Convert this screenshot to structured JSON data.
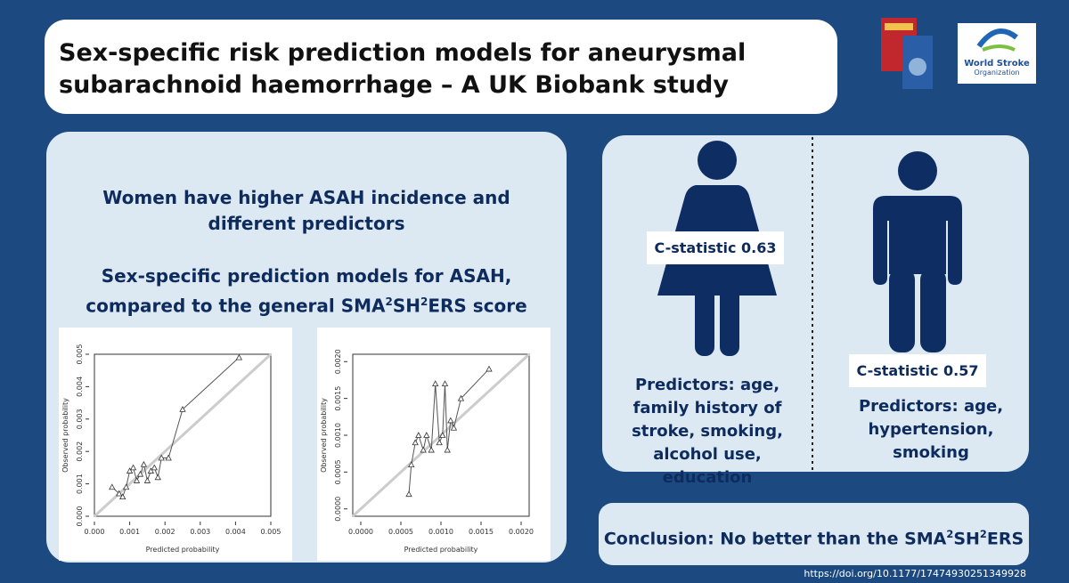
{
  "header": {
    "title": "Sex-specific risk prediction models for aneurysmal subarachnoid haemorrhage – A UK Biobank study",
    "logo_line1": "World Stroke",
    "logo_line2": "Organization"
  },
  "left_panel": {
    "heading": "Women have higher ASAH incidence and different predictors",
    "subheading": [
      "Sex-specific prediction models for ASAH, compared to the general SMA",
      "2",
      "SH",
      "2",
      "ERS score"
    ],
    "plots": [
      {
        "xlabel": "Predicted probability",
        "ylabel": "Observed probability",
        "xlim": [
          0,
          0.005
        ],
        "ylim": [
          0,
          0.005
        ],
        "xticks": [
          {
            "value": 0,
            "label": "0.000"
          },
          {
            "value": 0.001,
            "label": "0.001"
          },
          {
            "value": 0.002,
            "label": "0.002"
          },
          {
            "value": 0.003,
            "label": "0.003"
          },
          {
            "value": 0.004,
            "label": "0.004"
          },
          {
            "value": 0.005,
            "label": "0.005"
          }
        ],
        "yticks": [
          {
            "value": 0,
            "label": "0.000"
          },
          {
            "value": 0.001,
            "label": "0.001"
          },
          {
            "value": 0.002,
            "label": "0.002"
          },
          {
            "value": 0.003,
            "label": "0.003"
          },
          {
            "value": 0.004,
            "label": "0.004"
          },
          {
            "value": 0.005,
            "label": "0.005"
          }
        ],
        "x": [
          0.0005,
          0.0007,
          0.0008,
          0.0009,
          0.001,
          0.0011,
          0.0012,
          0.0013,
          0.0014,
          0.0015,
          0.0016,
          0.0017,
          0.0018,
          0.0019,
          0.0021,
          0.0025,
          0.0041
        ],
        "y": [
          0.0009,
          0.0007,
          0.0006,
          0.0009,
          0.0014,
          0.0015,
          0.0011,
          0.0013,
          0.0016,
          0.0011,
          0.0014,
          0.0015,
          0.0012,
          0.0018,
          0.0018,
          0.0033,
          0.0049
        ]
      },
      {
        "xlabel": "Predicted probability",
        "ylabel": "Observed probability",
        "xlim": [
          -0.0001,
          0.0021
        ],
        "ylim": [
          -0.0001,
          0.0021
        ],
        "xticks": [
          {
            "value": 0,
            "label": "0.0000"
          },
          {
            "value": 0.0005,
            "label": "0.0005"
          },
          {
            "value": 0.001,
            "label": "0.0010"
          },
          {
            "value": 0.0015,
            "label": "0.0015"
          },
          {
            "value": 0.002,
            "label": "0.0020"
          }
        ],
        "yticks": [
          {
            "value": 0,
            "label": "0.0000"
          },
          {
            "value": 0.0005,
            "label": "0.0005"
          },
          {
            "value": 0.001,
            "label": "0.0010"
          },
          {
            "value": 0.0015,
            "label": "0.0015"
          },
          {
            "value": 0.002,
            "label": "0.0020"
          }
        ],
        "x": [
          0.0006,
          0.00063,
          0.00068,
          0.00072,
          0.00078,
          0.00082,
          0.00088,
          0.00093,
          0.00098,
          0.00102,
          0.00105,
          0.00108,
          0.00112,
          0.00116,
          0.00125,
          0.0016
        ],
        "y": [
          0.0002,
          0.0006,
          0.0009,
          0.001,
          0.0008,
          0.001,
          0.0008,
          0.0017,
          0.0009,
          0.001,
          0.0017,
          0.0008,
          0.0012,
          0.0011,
          0.0015,
          0.0019
        ]
      }
    ]
  },
  "women": {
    "c_statistic": "C-statistic 0.63",
    "predictors": "Predictors: age, family history of stroke, smoking, alcohol use, education"
  },
  "men": {
    "c_statistic": "C-statistic 0.57",
    "predictors": "Predictors: age, hypertension, smoking"
  },
  "conclusion": [
    "Conclusion: No better than the SMA",
    "2",
    "SH",
    "2",
    "ERS"
  ],
  "doi": "https://doi.org/10.1177/17474930251349928"
}
